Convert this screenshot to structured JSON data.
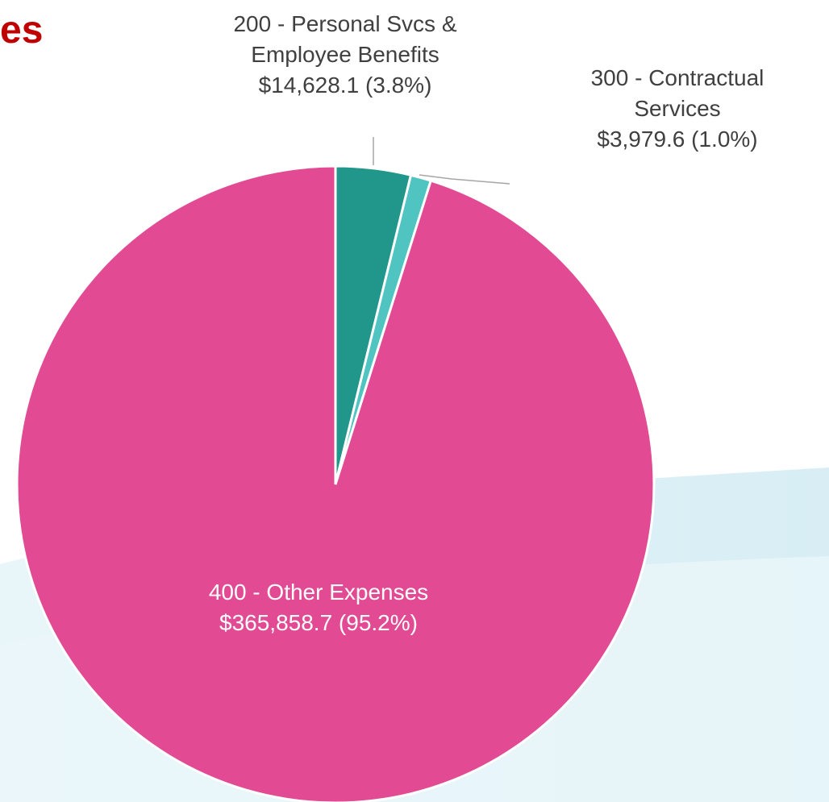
{
  "chart_data": {
    "type": "pie",
    "title": "es",
    "categories": [
      "200 - Personal Svcs & Employee Benefits",
      "300 - Contractual Services",
      "400 - Other Expenses"
    ],
    "values": [
      14628.1,
      3979.6,
      365858.7
    ],
    "value_labels": [
      "$14,628.1 (3.8%)",
      "$3,979.6 (1.0%)",
      "$365,858.7 (95.2%)"
    ],
    "colors": [
      "#21968a",
      "#4fc4c0",
      "#e24a93"
    ]
  }
}
